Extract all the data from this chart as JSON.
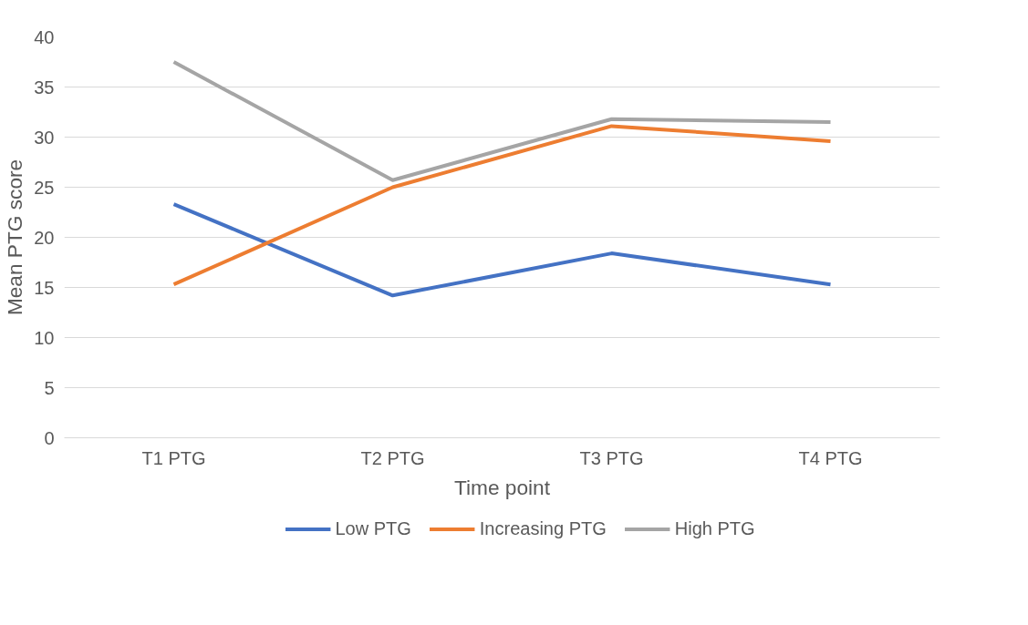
{
  "chart_data": {
    "type": "line",
    "xlabel": "Time point",
    "ylabel": "Mean PTG score",
    "categories": [
      "T1 PTG",
      "T2 PTG",
      "T3 PTG",
      "T4 PTG"
    ],
    "series": [
      {
        "name": "Low PTG",
        "color": "#4472c4",
        "values": [
          23.3,
          14.2,
          18.4,
          15.3
        ]
      },
      {
        "name": "Increasing PTG",
        "color": "#ed7d31",
        "values": [
          15.3,
          25.0,
          31.1,
          29.6
        ]
      },
      {
        "name": "High PTG",
        "color": "#a5a5a5",
        "values": [
          37.5,
          25.7,
          31.8,
          31.5
        ]
      }
    ],
    "ylim": [
      0,
      40
    ],
    "yticks": [
      0,
      5,
      10,
      15,
      20,
      25,
      30,
      35,
      40
    ],
    "grid": "y",
    "legend": "bottom",
    "marker": "none",
    "line_style": "solid"
  }
}
